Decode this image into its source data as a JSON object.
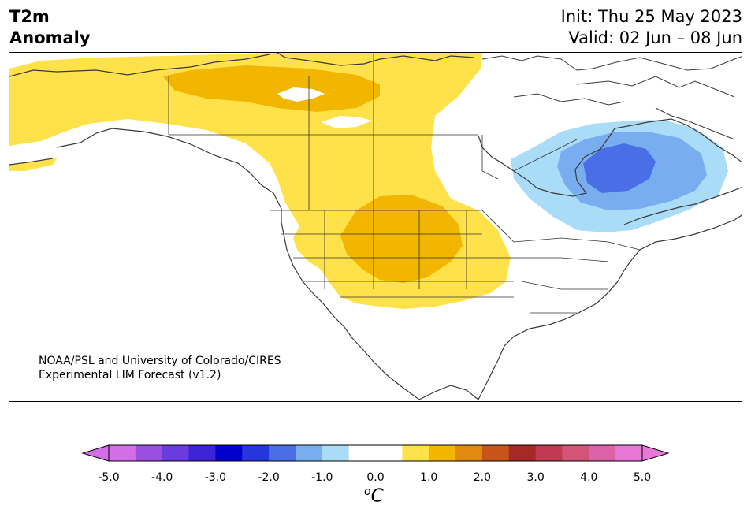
{
  "header": {
    "title_line1": "T2m",
    "title_line2": "Anomaly",
    "init": "Init: Thu 25 May 2023",
    "valid": "Valid: 02 Jun – 08 Jun"
  },
  "credit": {
    "line1": "NOAA/PSL and University of Colorado/CIRES",
    "line2": "Experimental LIM Forecast (v1.2)"
  },
  "colorbar": {
    "unit_base": "C",
    "unit_sup": "o",
    "ticks": [
      "-5.0",
      "-4.0",
      "-3.0",
      "-2.0",
      "-1.0",
      "0.0",
      "1.0",
      "2.0",
      "3.0",
      "4.0",
      "5.0"
    ],
    "colors": [
      "#d46ee8",
      "#9b4fe0",
      "#6a3be0",
      "#3d22d6",
      "#0000cc",
      "#2436dc",
      "#4a6ee6",
      "#78aef0",
      "#aadcf8",
      "#ffffff",
      "#ffffff",
      "#ffe14a",
      "#f2b600",
      "#e08a10",
      "#c85418",
      "#a82828",
      "#c23a50",
      "#d45478",
      "#dd62a8",
      "#e878d8"
    ],
    "under_color": "#d46ee8",
    "over_color": "#e878d8"
  },
  "palette": {
    "land_outline": "#3a3a3a",
    "border_line": "#333333",
    "warm_light": "#ffe14a",
    "warm_medium": "#f2b600",
    "cool_light": "#aadcf8",
    "cool_medium": "#78aef0",
    "cool_dark": "#4a6ee6"
  }
}
